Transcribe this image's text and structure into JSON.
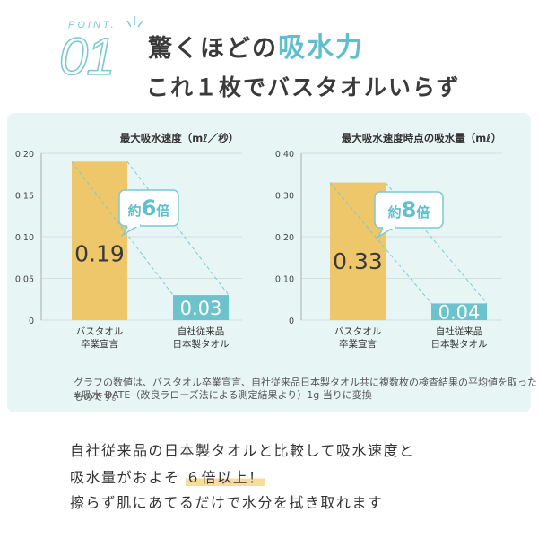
{
  "header": {
    "point_label": "POINT.",
    "point_number": "01",
    "headline1_prefix": "驚くほどの",
    "headline1_accent": "吸水力",
    "headline2": "これ１枚でバスタオルいらず"
  },
  "colors": {
    "accent": "#5fbfcc",
    "bar_main": "#eec76b",
    "bar_compare": "#6cc3cc",
    "panel_bg": "#e8f5f5"
  },
  "chart_data": [
    {
      "type": "bar",
      "title": "最大吸水速度（mℓ／秒）",
      "categories": [
        "バスタオル\n卒業宣言",
        "自社従来品\n日本製タオル"
      ],
      "category_lines": [
        [
          "バスタオル",
          "卒業宣言"
        ],
        [
          "自社従来品",
          "日本製タオル"
        ]
      ],
      "values": [
        0.19,
        0.03
      ],
      "value_labels": [
        "0.19",
        "0.03"
      ],
      "ylim": [
        0,
        0.2
      ],
      "yticks": [
        "0",
        "0.05",
        "0.10",
        "0.15",
        "0.20"
      ],
      "callout": {
        "prefix": "約",
        "number": "6",
        "suffix": "倍"
      }
    },
    {
      "type": "bar",
      "title": "最大吸水速度時点の吸水量（mℓ）",
      "categories": [
        "バスタオル\n卒業宣言",
        "自社従来品\n日本製タオル"
      ],
      "category_lines": [
        [
          "バスタオル",
          "卒業宣言"
        ],
        [
          "自社従来品",
          "日本製タオル"
        ]
      ],
      "values": [
        0.33,
        0.04
      ],
      "value_labels": [
        "0.33",
        "0.04"
      ],
      "ylim": [
        0,
        0.4
      ],
      "yticks": [
        "0",
        "0.10",
        "0.20",
        "0.30",
        "0.40"
      ],
      "callout": {
        "prefix": "約",
        "number": "8",
        "suffix": "倍"
      }
    }
  ],
  "footnotes": [
    "グラフの数値は、バスタオル卒業宣言、自社従来品日本製タオル共に複数枚の検査結果の平均値を取ったものです。",
    "※吸水 DATE（改良ラローズ法による測定結果より）1g 当りに変換"
  ],
  "body": {
    "line1": "自社従来品の日本製タオルと比較して吸水速度と",
    "line2_prefix": "吸水量がおよそ",
    "line2_highlight": "６倍以上！",
    "line3": "擦らず肌にあてるだけで水分を拭き取れます"
  }
}
